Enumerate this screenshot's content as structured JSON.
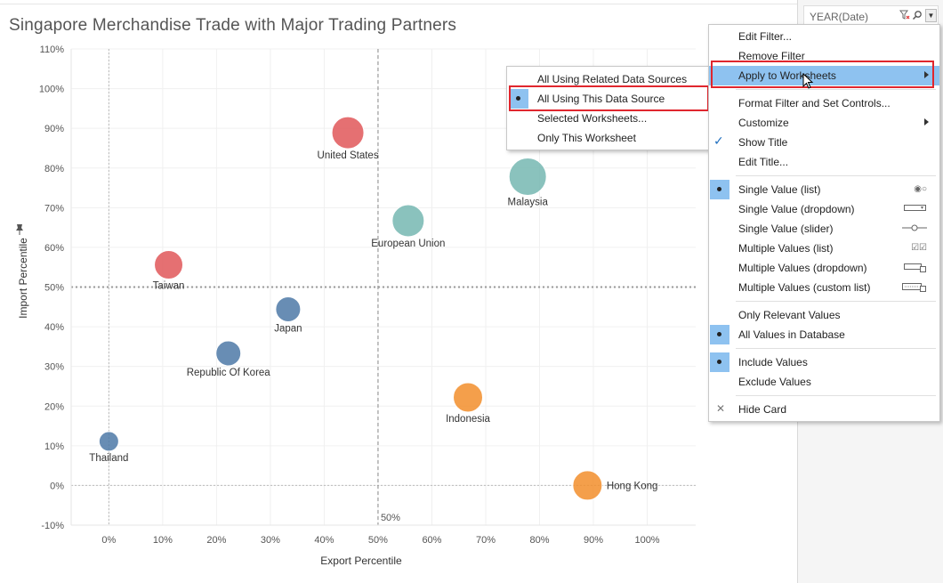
{
  "title": "Singapore Merchandise Trade with Major Trading Partners",
  "filter_card": {
    "title": "YEAR(Date)",
    "filter_icon": "filter-clear-icon",
    "search_icon": "search-icon",
    "dropdown_icon": "chevron-down-icon"
  },
  "pin_icon": "pin-icon",
  "chart_data": {
    "type": "scatter",
    "title": "Singapore Merchandise Trade with Major Trading Partners",
    "xlabel": "Export Percentile",
    "ylabel": "Import Percentile",
    "xlim": [
      -0.07,
      1.09
    ],
    "ylim": [
      -0.1,
      1.1
    ],
    "x_ticks": [
      "0%",
      "10%",
      "20%",
      "30%",
      "40%",
      "50%",
      "60%",
      "70%",
      "80%",
      "90%",
      "100%"
    ],
    "x_tick_values": [
      0,
      0.1,
      0.2,
      0.3,
      0.4,
      0.5,
      0.6,
      0.7,
      0.8,
      0.9,
      1.0
    ],
    "y_ticks": [
      "-10%",
      "0%",
      "10%",
      "20%",
      "30%",
      "40%",
      "50%",
      "60%",
      "70%",
      "80%",
      "90%",
      "100%",
      "110%"
    ],
    "y_tick_values": [
      -0.1,
      0,
      0.1,
      0.2,
      0.3,
      0.4,
      0.5,
      0.6,
      0.7,
      0.8,
      0.9,
      1.0,
      1.1
    ],
    "reference_lines": {
      "x": 0.5,
      "y": 0.5,
      "x_label": "50%"
    },
    "grid": true,
    "points": [
      {
        "label": "United States",
        "x": 0.444,
        "y": 0.889,
        "size": 36,
        "color": "#e15759"
      },
      {
        "label": "Malaysia",
        "x": 0.778,
        "y": 0.778,
        "size": 42,
        "color": "#76b7b2"
      },
      {
        "label": "European Union",
        "x": 0.556,
        "y": 0.667,
        "size": 36,
        "color": "#76b7b2"
      },
      {
        "label": "Taiwan",
        "x": 0.111,
        "y": 0.556,
        "size": 32,
        "color": "#e15759"
      },
      {
        "label": "Japan",
        "x": 0.333,
        "y": 0.444,
        "size": 28,
        "color": "#4e79a7"
      },
      {
        "label": "Republic Of Korea",
        "x": 0.222,
        "y": 0.333,
        "size": 28,
        "color": "#4e79a7"
      },
      {
        "label": "Indonesia",
        "x": 0.667,
        "y": 0.222,
        "size": 33,
        "color": "#f28e2b"
      },
      {
        "label": "Thailand",
        "x": 0.0,
        "y": 0.111,
        "size": 22,
        "color": "#4e79a7"
      },
      {
        "label": "Hong Kong",
        "x": 0.889,
        "y": 0.0,
        "size": 33,
        "color": "#f28e2b"
      }
    ]
  },
  "context_menu": {
    "items": [
      {
        "label": "Edit Filter..."
      },
      {
        "label": "Remove Filter"
      },
      {
        "label": "Apply to Worksheets",
        "submenu": true,
        "highlighted": true
      },
      {
        "label": "Format Filter and Set Controls..."
      },
      {
        "label": "Customize",
        "submenu": true
      },
      {
        "label": "Show Title",
        "checked": true
      },
      {
        "label": "Edit Title..."
      },
      {
        "label": "Single Value (list)",
        "selected": true,
        "control_icon": "radio-buttons-icon"
      },
      {
        "label": "Single Value (dropdown)",
        "control_icon": "dropdown-control-icon"
      },
      {
        "label": "Single Value (slider)",
        "control_icon": "slider-control-icon"
      },
      {
        "label": "Multiple Values (list)",
        "control_icon": "checkboxes-icon"
      },
      {
        "label": "Multiple Values (dropdown)",
        "control_icon": "multi-dropdown-icon"
      },
      {
        "label": "Multiple Values (custom list)",
        "control_icon": "custom-list-icon"
      },
      {
        "label": "Only Relevant Values"
      },
      {
        "label": "All Values in Database",
        "selected": true
      },
      {
        "label": "Include Values",
        "selected": true
      },
      {
        "label": "Exclude Values"
      },
      {
        "label": "Hide Card",
        "close": true
      }
    ]
  },
  "submenu": {
    "items": [
      {
        "label": "All Using Related Data Sources"
      },
      {
        "label": "All Using This Data Source",
        "selected": true
      },
      {
        "label": "Selected Worksheets..."
      },
      {
        "label": "Only This Worksheet"
      }
    ]
  },
  "colors": {
    "accent_highlight": "#8ec2f0",
    "annotation_red": "#e0262e"
  }
}
